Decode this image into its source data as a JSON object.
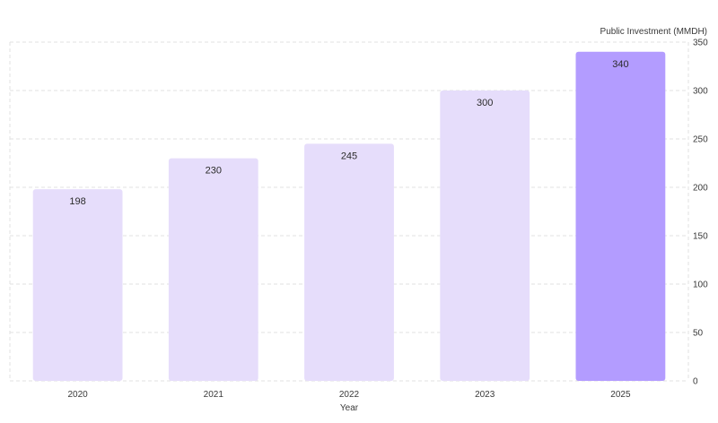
{
  "chart_data": {
    "type": "bar",
    "categories": [
      "2020",
      "2021",
      "2022",
      "2023",
      "2025"
    ],
    "values": [
      198,
      230,
      245,
      300,
      340
    ],
    "xlabel": "Year",
    "ylabel": "Public Investment (MMDH)",
    "ylim": [
      0,
      350
    ],
    "yticks": [
      0,
      50,
      100,
      150,
      200,
      250,
      300,
      350
    ],
    "y_axis_position": "right",
    "grid": true,
    "data_labels": true,
    "colors": {
      "bar": "#e6ddfb",
      "bar_highlight": "#b39cff",
      "grid": "#e2e2e2"
    },
    "highlight_index": 4
  }
}
